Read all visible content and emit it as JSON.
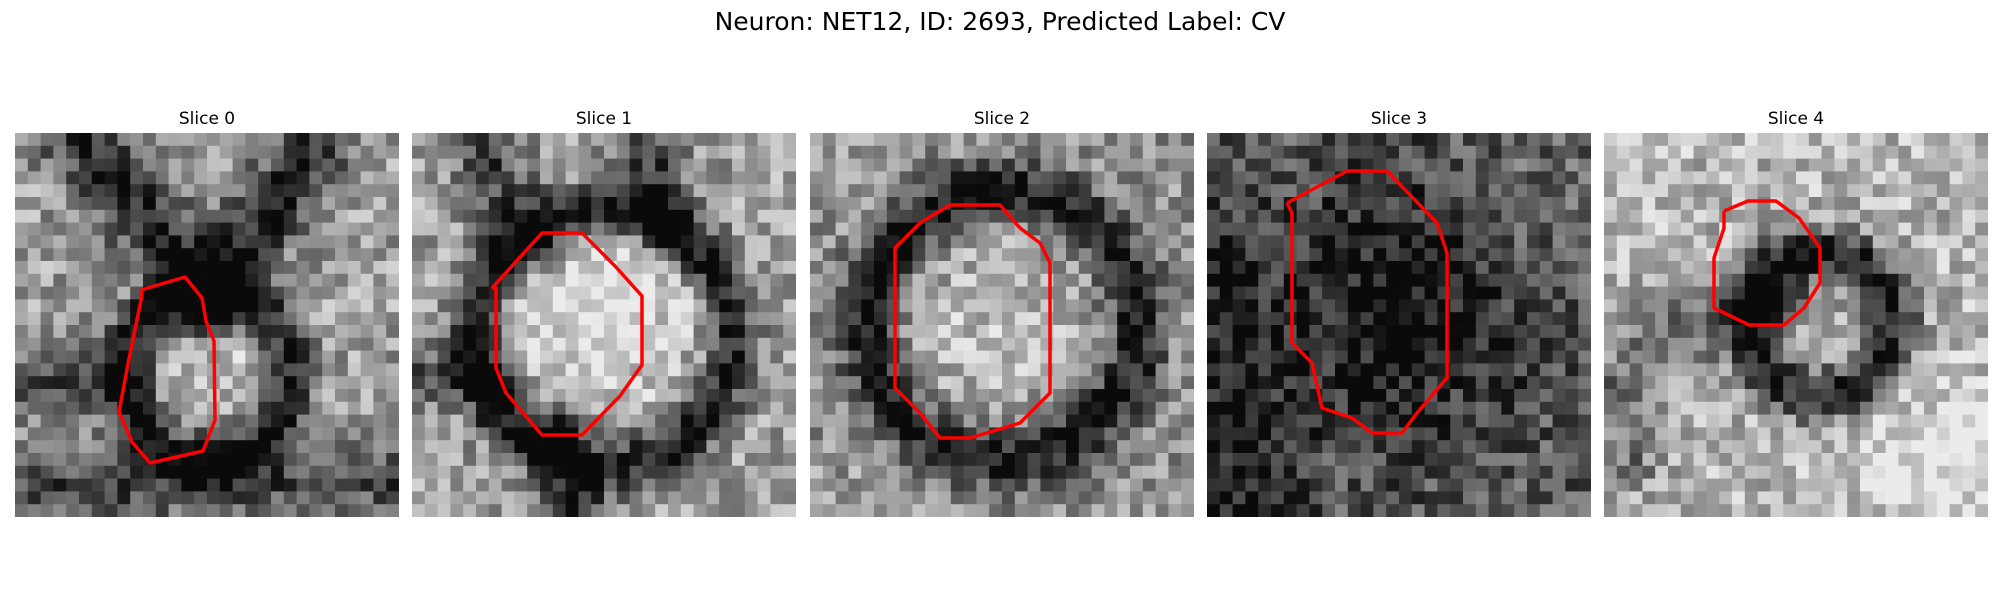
{
  "figure": {
    "title": "Neuron: NET12, ID: 2693, Predicted Label: CV",
    "contour_color": "#ff0000",
    "panels": [
      {
        "label": "Slice 0",
        "seed": 11,
        "theme": "slice0"
      },
      {
        "label": "Slice 1",
        "seed": 23,
        "theme": "slice1"
      },
      {
        "label": "Slice 2",
        "seed": 37,
        "theme": "slice2"
      },
      {
        "label": "Slice 3",
        "seed": 41,
        "theme": "slice3"
      },
      {
        "label": "Slice 4",
        "seed": 53,
        "theme": "slice4"
      }
    ]
  }
}
